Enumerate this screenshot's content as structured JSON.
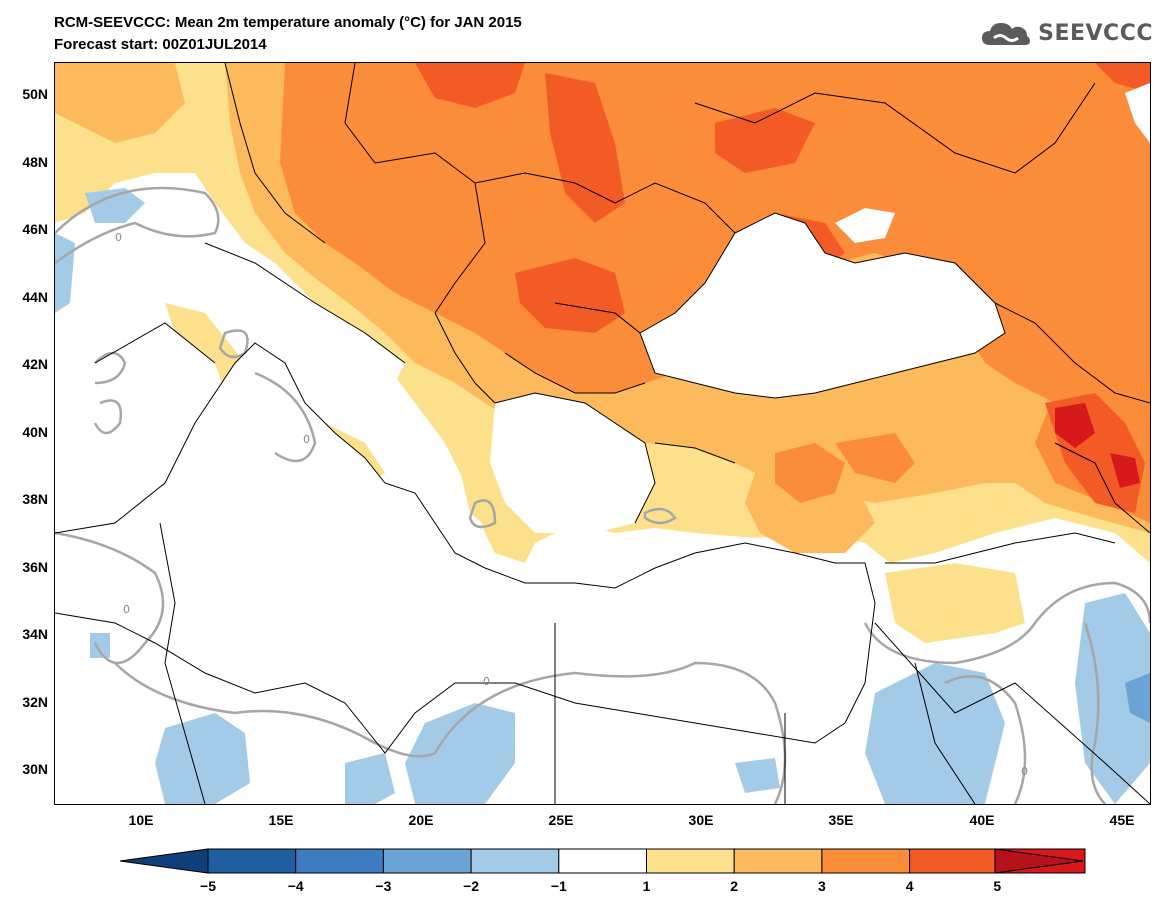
{
  "header": {
    "title": "RCM-SEEVCCC: Mean 2m temperature anomaly (°C) for JAN 2015",
    "subtitle": "Forecast start: 00Z01JUL2014",
    "logo_text": "SEEVCCC",
    "logo_icon": "cloud-icon"
  },
  "map": {
    "lon_range": [
      7,
      46
    ],
    "lat_range": [
      29,
      51
    ],
    "lat_labels": [
      "50N",
      "48N",
      "46N",
      "44N",
      "42N",
      "40N",
      "38N",
      "36N",
      "34N",
      "32N",
      "30N"
    ],
    "lon_labels": [
      "10E",
      "15E",
      "20E",
      "25E",
      "30E",
      "35E",
      "40E",
      "45E"
    ],
    "contour_label": "0"
  },
  "colorbar": {
    "labels": [
      "−5",
      "−4",
      "−3",
      "−2",
      "−1",
      "1",
      "2",
      "3",
      "4",
      "5"
    ],
    "colors": [
      "#1f5fa0",
      "#3b7dc0",
      "#6aa3d5",
      "#a3cae6",
      "#ffffff",
      "#fde08b",
      "#fdba5c",
      "#fb8c3a",
      "#f25a26",
      "#d7191c"
    ],
    "under_color": "#0f3f7a",
    "over_color": "#b5121b"
  }
}
